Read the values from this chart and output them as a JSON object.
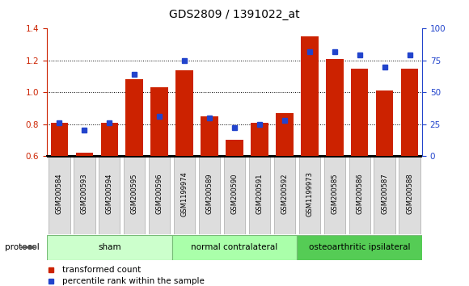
{
  "title": "GDS2809 / 1391022_at",
  "samples": [
    "GSM200584",
    "GSM200593",
    "GSM200594",
    "GSM200595",
    "GSM200596",
    "GSM1199974",
    "GSM200589",
    "GSM200590",
    "GSM200591",
    "GSM200592",
    "GSM1199973",
    "GSM200585",
    "GSM200586",
    "GSM200587",
    "GSM200588"
  ],
  "transformed_count": [
    0.81,
    0.62,
    0.81,
    1.08,
    1.03,
    1.14,
    0.85,
    0.7,
    0.81,
    0.87,
    1.35,
    1.21,
    1.15,
    1.01,
    1.15
  ],
  "percentile_rank": [
    26,
    20,
    26,
    64,
    31,
    75,
    30,
    22,
    25,
    28,
    82,
    82,
    79,
    70,
    79
  ],
  "bar_color": "#cc2200",
  "dot_color": "#2244cc",
  "ylim_left": [
    0.6,
    1.4
  ],
  "ylim_right": [
    0,
    100
  ],
  "yticks_left": [
    0.6,
    0.8,
    1.0,
    1.2,
    1.4
  ],
  "yticks_right": [
    0,
    25,
    50,
    75,
    100
  ],
  "groups": [
    {
      "label": "sham",
      "start": 0,
      "end": 5,
      "color": "#ccffcc"
    },
    {
      "label": "normal contralateral",
      "start": 5,
      "end": 10,
      "color": "#aaffaa"
    },
    {
      "label": "osteoarthritic ipsilateral",
      "start": 10,
      "end": 15,
      "color": "#55cc55"
    }
  ],
  "protocol_label": "protocol",
  "legend_items": [
    {
      "label": "transformed count",
      "color": "#cc2200"
    },
    {
      "label": "percentile rank within the sample",
      "color": "#2244cc"
    }
  ],
  "background_color": "#ffffff",
  "ticklabel_bg": "#dddddd",
  "xlabel_color": "#cc2200",
  "ylabel_right_color": "#2244cc"
}
